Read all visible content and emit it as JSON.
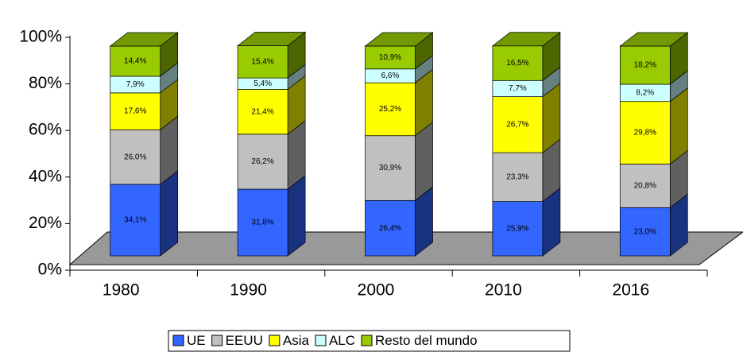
{
  "chart_data": {
    "type": "bar3d_stacked",
    "categories": [
      "1980",
      "1990",
      "2000",
      "2010",
      "2016"
    ],
    "series": [
      {
        "name": "UE",
        "color": "#3366ff",
        "values": [
          34.1,
          31.8,
          26.4,
          25.9,
          23.0
        ],
        "value_labels": [
          "34,1%",
          "31,8%",
          "26,4%",
          "25,9%",
          "23,0%"
        ]
      },
      {
        "name": "EEUU",
        "color": "#c0c0c0",
        "values": [
          26.0,
          26.2,
          30.9,
          23.3,
          20.8
        ],
        "value_labels": [
          "26,0%",
          "26,2%",
          "30,9%",
          "23,3%",
          "20,8%"
        ]
      },
      {
        "name": "Asia",
        "color": "#ffff00",
        "values": [
          17.6,
          21.4,
          25.2,
          26.7,
          29.8
        ],
        "value_labels": [
          "17,6%",
          "21,4%",
          "25,2%",
          "26,7%",
          "29,8%"
        ]
      },
      {
        "name": "ALC",
        "color": "#ccffff",
        "values": [
          7.9,
          5.4,
          6.6,
          7.7,
          8.2
        ],
        "value_labels": [
          "7,9%",
          "5,4%",
          "6,6%",
          "7,7%",
          "8,2%"
        ]
      },
      {
        "name": "Resto del mundo",
        "color": "#99cc00",
        "values": [
          14.4,
          15.4,
          10.9,
          16.5,
          18.2
        ],
        "value_labels": [
          "14,4%",
          "15,4%",
          "10,9%",
          "16,5%",
          "18,2%"
        ]
      }
    ],
    "ylim": [
      0,
      100
    ],
    "yticks": [
      {
        "value": 0,
        "label": "0%"
      },
      {
        "value": 20,
        "label": "20%"
      },
      {
        "value": 40,
        "label": "40%"
      },
      {
        "value": 60,
        "label": "60%"
      },
      {
        "value": 80,
        "label": "80%"
      },
      {
        "value": 100,
        "label": "100%"
      }
    ],
    "legend": "bottom"
  }
}
